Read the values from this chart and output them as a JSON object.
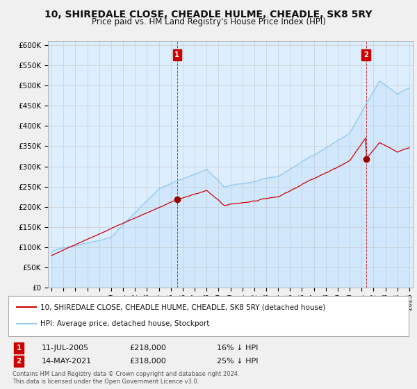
{
  "title": "10, SHIREDALE CLOSE, CHEADLE HULME, CHEADLE, SK8 5RY",
  "subtitle": "Price paid vs. HM Land Registry's House Price Index (HPI)",
  "title_fontsize": 10,
  "subtitle_fontsize": 8.5,
  "ylabel_ticks": [
    "£0",
    "£50K",
    "£100K",
    "£150K",
    "£200K",
    "£250K",
    "£300K",
    "£350K",
    "£400K",
    "£450K",
    "£500K",
    "£550K",
    "£600K"
  ],
  "ytick_vals": [
    0,
    50000,
    100000,
    150000,
    200000,
    250000,
    300000,
    350000,
    400000,
    450000,
    500000,
    550000,
    600000
  ],
  "ylim": [
    0,
    610000
  ],
  "hpi_color": "#90c8f0",
  "price_color": "#cc0000",
  "background_color": "#f0f0f0",
  "plot_bg_color": "#ddeeff",
  "grid_color": "#cccccc",
  "sale1_year": 2005.53,
  "sale1_price": 218000,
  "sale2_year": 2021.37,
  "sale2_price": 318000,
  "annotation1": {
    "label": "1",
    "date_str": "11-JUL-2005",
    "price_str": "£218,000",
    "pct_str": "16% ↓ HPI"
  },
  "annotation2": {
    "label": "2",
    "date_str": "14-MAY-2021",
    "price_str": "£318,000",
    "pct_str": "25% ↓ HPI"
  },
  "legend_line1": "10, SHIREDALE CLOSE, CHEADLE HULME, CHEADLE, SK8 5RY (detached house)",
  "legend_line2": "HPI: Average price, detached house, Stockport",
  "footer1": "Contains HM Land Registry data © Crown copyright and database right 2024.",
  "footer2": "This data is licensed under the Open Government Licence v3.0.",
  "num_box_color": "#cc0000"
}
